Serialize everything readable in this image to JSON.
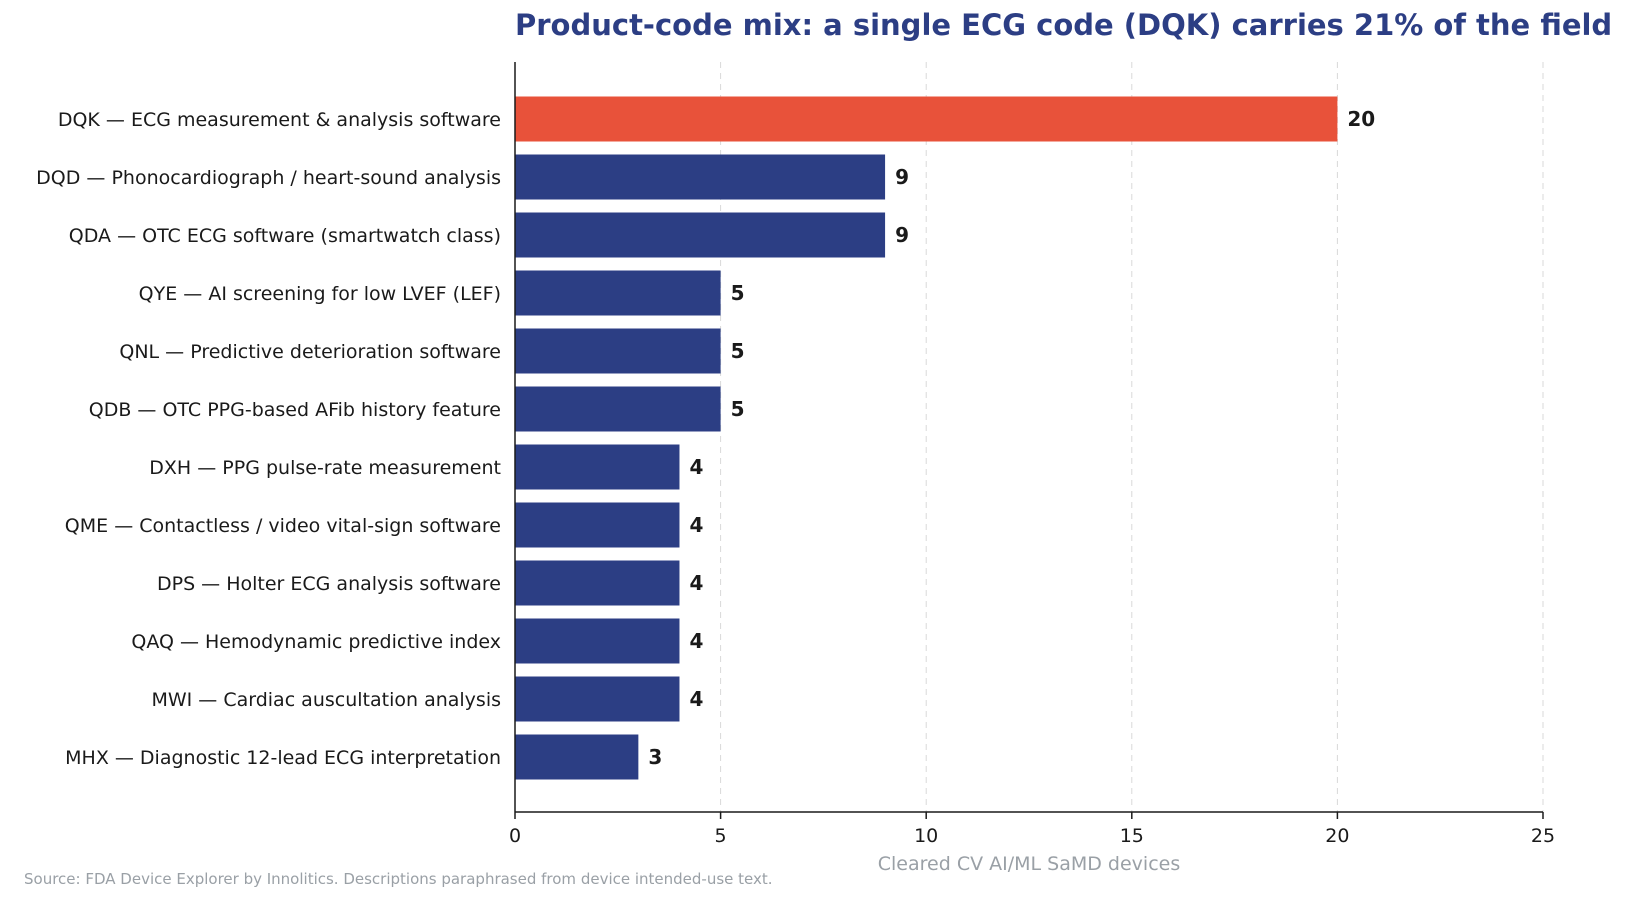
{
  "chart_data": {
    "type": "bar",
    "orientation": "horizontal",
    "title": "Product-code mix: a single ECG code (DQK) carries 21% of the field",
    "xlabel": "Cleared CV AI/ML SaMD devices",
    "ylabel": "",
    "xlim": [
      0,
      25
    ],
    "xticks": [
      0,
      5,
      10,
      15,
      20,
      25
    ],
    "grid": "vertical dashed",
    "categories": [
      "DQK — ECG measurement & analysis software",
      "DQD — Phonocardiograph / heart-sound analysis",
      "QDA — OTC ECG software (smartwatch class)",
      "QYE — AI screening for low LVEF (LEF)",
      "QNL — Predictive deterioration software",
      "QDB — OTC PPG-based AFib history feature",
      "DXH — PPG pulse-rate measurement",
      "QME — Contactless / video vital-sign software",
      "DPS — Holter ECG analysis software",
      "QAQ — Hemodynamic predictive index",
      "MWI — Cardiac auscultation analysis",
      "MHX — Diagnostic 12-lead ECG interpretation"
    ],
    "values": [
      20,
      9,
      9,
      5,
      5,
      5,
      4,
      4,
      4,
      4,
      4,
      3
    ],
    "highlight_index": 0,
    "colors": {
      "highlight": "#e8523a",
      "default": "#2c3e84",
      "title": "#2c3e84",
      "axis_label": "#9aa0a6",
      "grid": "#d9d9d9"
    }
  },
  "footer": {
    "source": "Source: FDA Device Explorer by Innolitics. Descriptions paraphrased from device intended-use text."
  }
}
